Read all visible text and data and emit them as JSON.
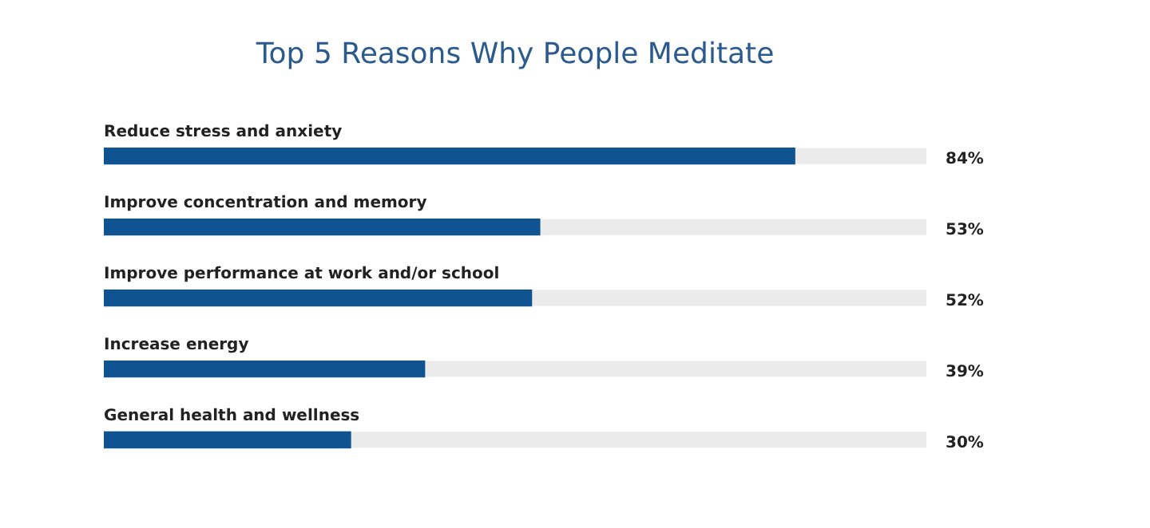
{
  "chart_data": {
    "type": "bar",
    "orientation": "horizontal",
    "title": "Top 5 Reasons Why People Meditate",
    "categories": [
      "Reduce stress and anxiety",
      "Improve concentration and memory",
      "Improve performance at work and/or school",
      "Increase energy",
      "General health and wellness"
    ],
    "values": [
      84,
      53,
      52,
      39,
      30
    ],
    "value_labels": [
      "84%",
      "53%",
      "52%",
      "39%",
      "30%"
    ],
    "color": "#0f5391",
    "xlim": [
      0,
      100
    ],
    "legend": false
  }
}
